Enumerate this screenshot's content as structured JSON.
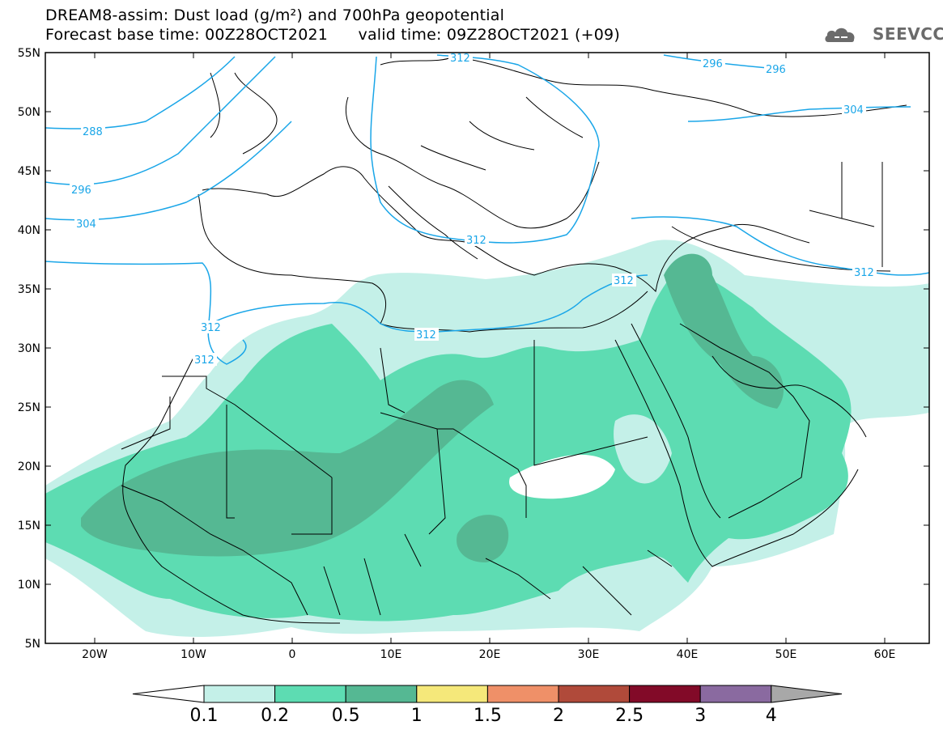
{
  "header": {
    "title_line1": "DREAM8-assim: Dust load (g/m²) and 700hPa geopotential",
    "title_line2": "Forecast base time: 00Z28OCT2021      valid time: 09Z28OCT2021 (+09)",
    "logo_text": "SEEVCCC"
  },
  "axes": {
    "lat_labels": [
      "55N",
      "50N",
      "45N",
      "40N",
      "35N",
      "30N",
      "25N",
      "20N",
      "15N",
      "10N",
      "5N"
    ],
    "lon_labels": [
      "20W",
      "10W",
      "0",
      "10E",
      "20E",
      "30E",
      "40E",
      "50E",
      "60E"
    ]
  },
  "contour_labels": [
    "288",
    "296",
    "304",
    "312",
    "296",
    "296",
    "304",
    "312",
    "312",
    "312",
    "312",
    "312",
    "312"
  ],
  "colorbar": {
    "tick_labels": [
      "0.1",
      "0.2",
      "0.5",
      "1",
      "1.5",
      "2",
      "2.5",
      "3",
      "4"
    ],
    "colors": [
      "#c4f0e8",
      "#5ddcb2",
      "#55b893",
      "#f5e87a",
      "#ef9068",
      "#b04a3a",
      "#820a28",
      "#8a6aa0",
      "#a8a8a8"
    ],
    "under_color": "#ffffff"
  },
  "colors": {
    "dust_light": "#c4f0e8",
    "dust_mid": "#5ddcb2",
    "dust_dark": "#55b893",
    "contour": "#1aa6e8",
    "borders": "#000000"
  }
}
